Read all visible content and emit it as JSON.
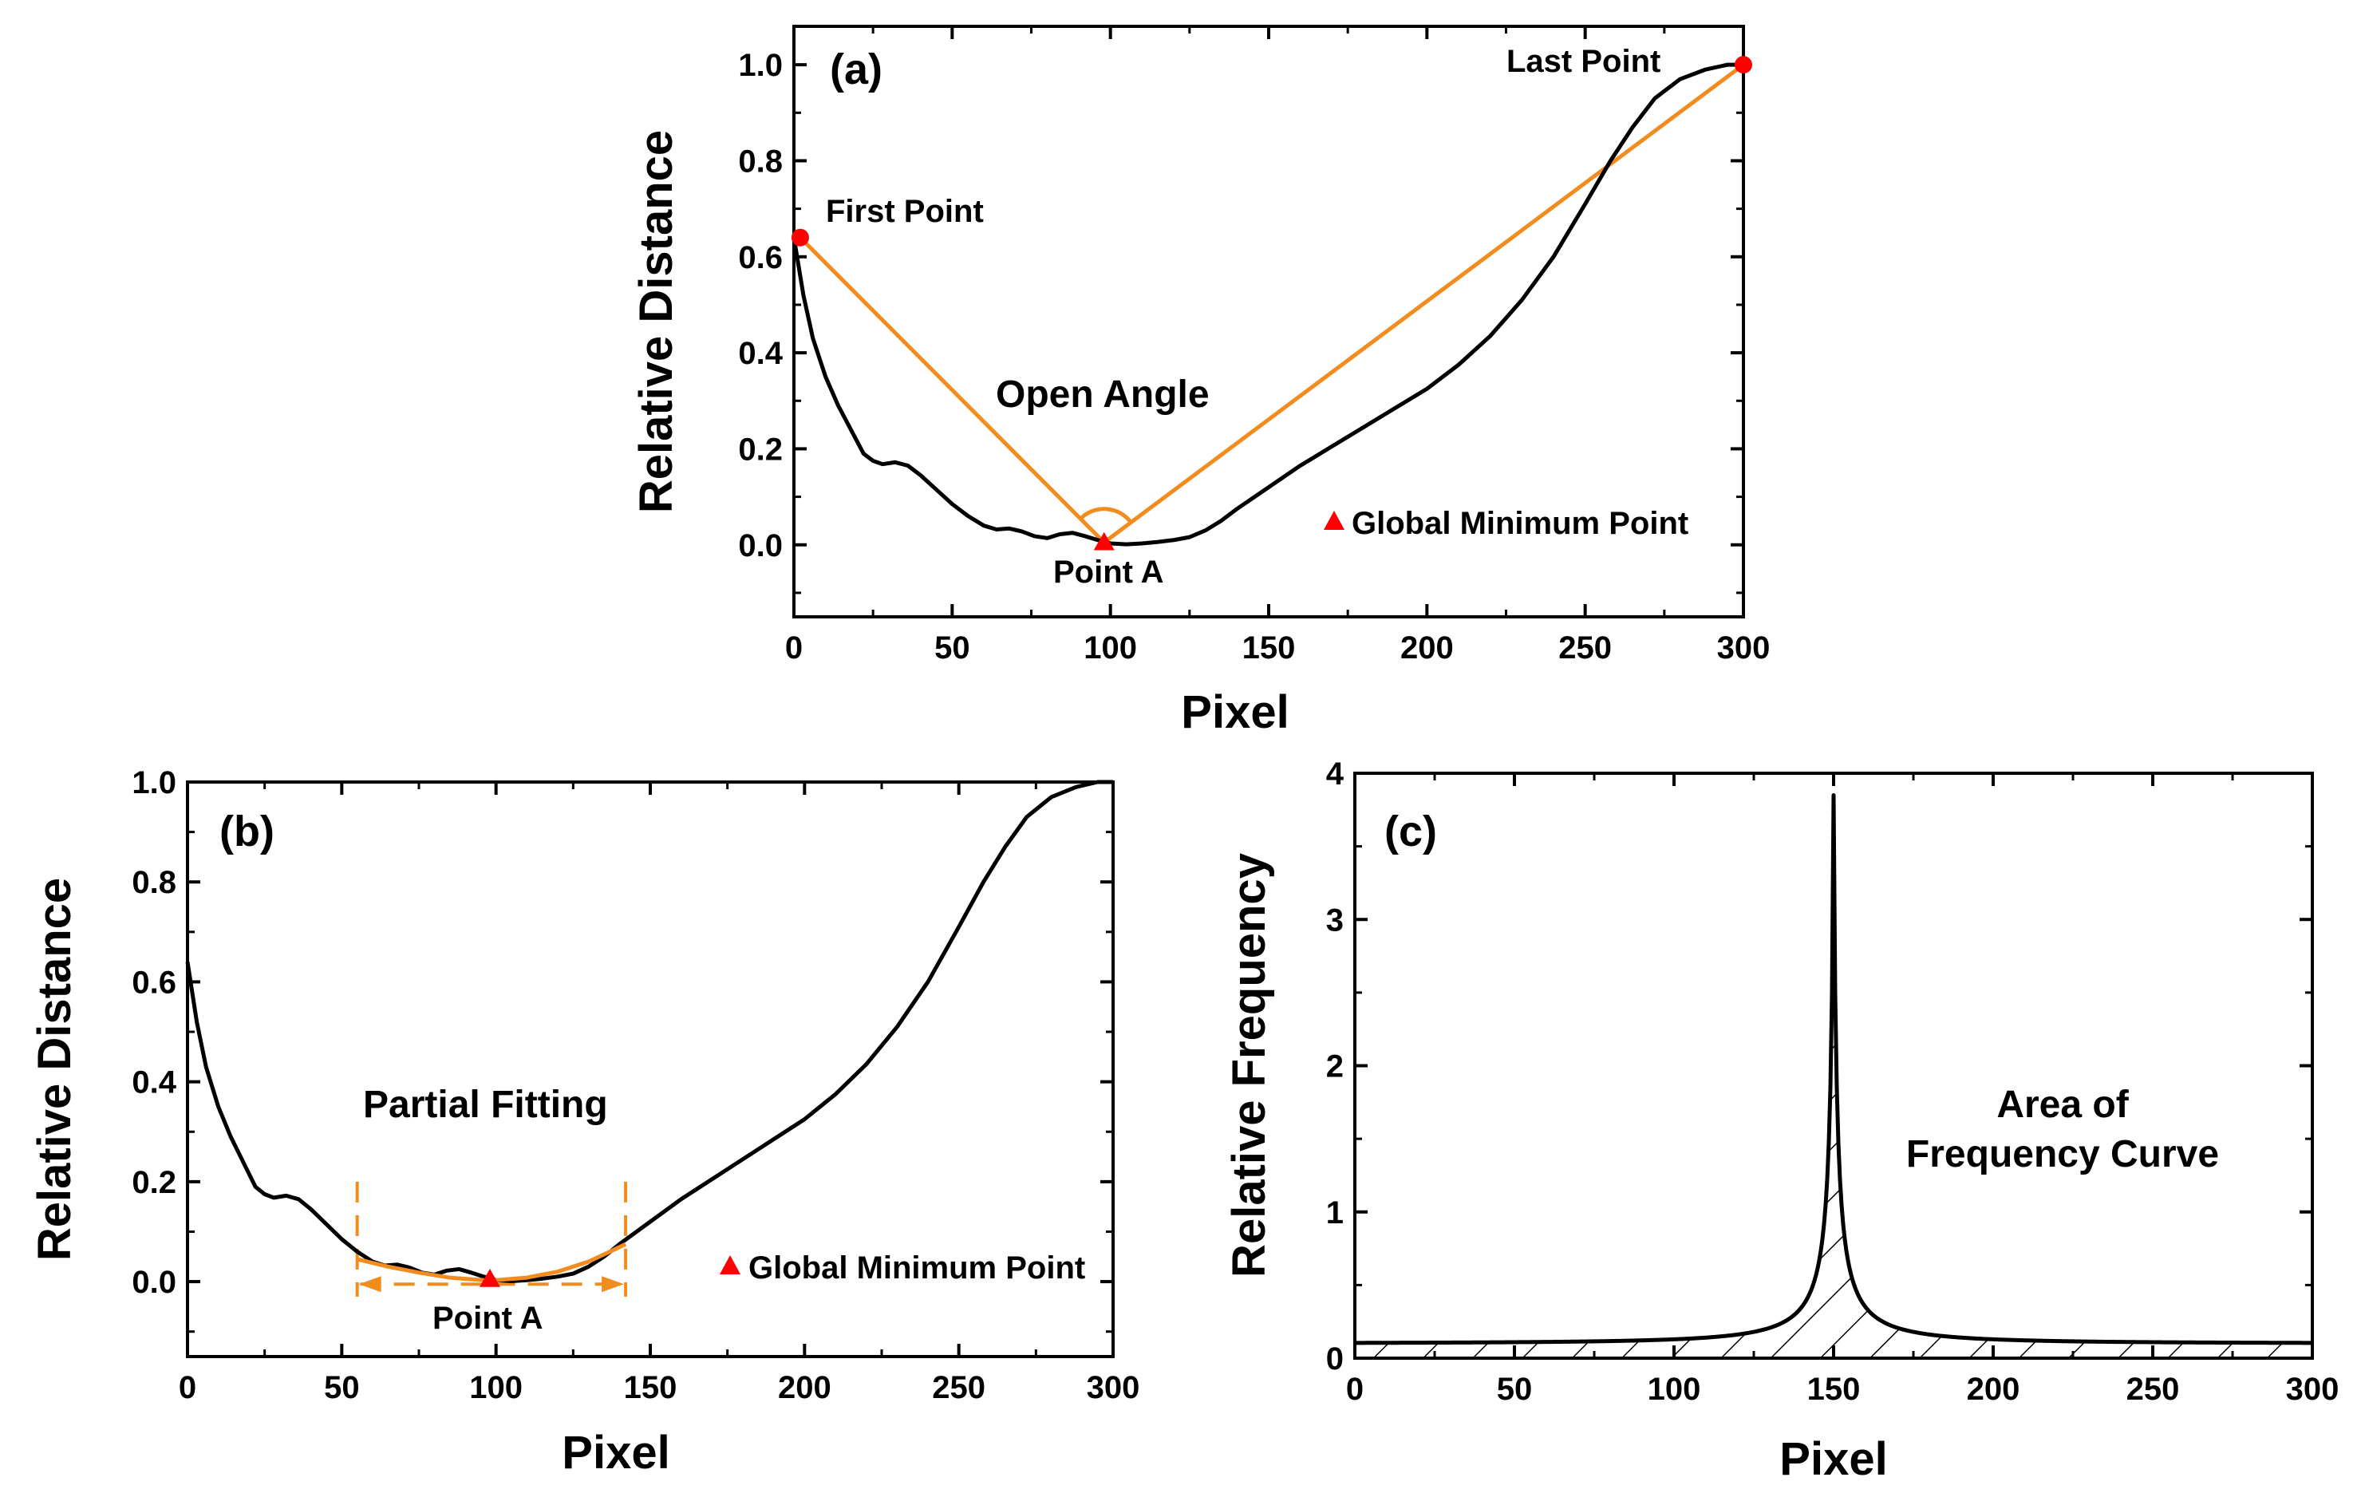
{
  "chart_data": [
    {
      "panel": "(a)",
      "type": "line",
      "xlabel": "Pixel",
      "ylabel": "Relative Distance",
      "xlim": [
        0,
        300
      ],
      "ylim": [
        -0.15,
        1.08
      ],
      "xticks": [
        0,
        50,
        100,
        150,
        200,
        250,
        300
      ],
      "yticks": [
        0.0,
        0.2,
        0.4,
        0.6,
        0.8,
        1.0
      ],
      "series": [
        {
          "name": "distance curve",
          "color": "#000000",
          "points": [
            [
              0,
              0.64
            ],
            [
              3,
              0.52
            ],
            [
              6,
              0.43
            ],
            [
              10,
              0.35
            ],
            [
              14,
              0.29
            ],
            [
              18,
              0.24
            ],
            [
              22,
              0.19
            ],
            [
              25,
              0.175
            ],
            [
              28,
              0.168
            ],
            [
              32,
              0.172
            ],
            [
              36,
              0.165
            ],
            [
              40,
              0.145
            ],
            [
              45,
              0.115
            ],
            [
              50,
              0.085
            ],
            [
              55,
              0.06
            ],
            [
              60,
              0.04
            ],
            [
              64,
              0.032
            ],
            [
              68,
              0.034
            ],
            [
              72,
              0.028
            ],
            [
              76,
              0.018
            ],
            [
              80,
              0.014
            ],
            [
              84,
              0.022
            ],
            [
              88,
              0.025
            ],
            [
              92,
              0.018
            ],
            [
              96,
              0.01
            ],
            [
              100,
              0.003
            ],
            [
              105,
              0.001
            ],
            [
              110,
              0.003
            ],
            [
              115,
              0.006
            ],
            [
              120,
              0.01
            ],
            [
              125,
              0.016
            ],
            [
              130,
              0.03
            ],
            [
              135,
              0.05
            ],
            [
              140,
              0.075
            ],
            [
              150,
              0.12
            ],
            [
              160,
              0.165
            ],
            [
              170,
              0.205
            ],
            [
              180,
              0.245
            ],
            [
              190,
              0.285
            ],
            [
              200,
              0.325
            ],
            [
              210,
              0.375
            ],
            [
              220,
              0.435
            ],
            [
              230,
              0.51
            ],
            [
              240,
              0.6
            ],
            [
              250,
              0.71
            ],
            [
              258,
              0.8
            ],
            [
              265,
              0.87
            ],
            [
              272,
              0.93
            ],
            [
              280,
              0.97
            ],
            [
              288,
              0.99
            ],
            [
              295,
              1.0
            ],
            [
              300,
              1.0
            ]
          ]
        },
        {
          "name": "open angle lines",
          "color": "#f28c1e",
          "points": [
            [
              2,
              0.64
            ],
            [
              98,
              0.005
            ],
            [
              300,
              1.0
            ]
          ]
        }
      ],
      "markers": [
        {
          "type": "circle",
          "color": "#ff0000",
          "x": 2,
          "y": 0.64
        },
        {
          "type": "circle",
          "color": "#ff0000",
          "x": 300,
          "y": 1.0
        },
        {
          "type": "triangle",
          "color": "#ff0000",
          "x": 98,
          "y": 0.005
        }
      ],
      "annotations": {
        "panel_label": "(a)",
        "first_point": "First Point",
        "last_point": "Last Point",
        "open_angle": "Open Angle",
        "point_a": "Point A",
        "legend": "Global Minimum Point"
      }
    },
    {
      "panel": "(b)",
      "type": "line",
      "xlabel": "Pixel",
      "ylabel": "Relative Distance",
      "xlim": [
        0,
        300
      ],
      "ylim": [
        -0.15,
        1.0
      ],
      "xticks": [
        0,
        50,
        100,
        150,
        200,
        250,
        300
      ],
      "yticks": [
        0.0,
        0.2,
        0.4,
        0.6,
        0.8,
        1.0
      ],
      "series": [
        {
          "name": "distance curve",
          "color": "#000000",
          "same_as_panel": "(a)"
        },
        {
          "name": "partial fitting",
          "color": "#f28c1e",
          "points": [
            [
              55,
              0.045
            ],
            [
              65,
              0.03
            ],
            [
              75,
              0.018
            ],
            [
              85,
              0.008
            ],
            [
              98,
              0.002
            ],
            [
              110,
              0.008
            ],
            [
              120,
              0.02
            ],
            [
              130,
              0.04
            ],
            [
              142,
              0.075
            ]
          ]
        }
      ],
      "fit_range": [
        55,
        142
      ],
      "markers": [
        {
          "type": "triangle",
          "color": "#ff0000",
          "x": 98,
          "y": 0.005
        }
      ],
      "annotations": {
        "panel_label": "(b)",
        "partial_fitting": "Partial Fitting",
        "point_a": "Point A",
        "legend": "Global Minimum Point"
      }
    },
    {
      "panel": "(c)",
      "type": "area",
      "xlabel": "Pixel",
      "ylabel": "Relative Frequency",
      "xlim": [
        0,
        300
      ],
      "ylim": [
        0,
        4
      ],
      "xticks": [
        0,
        50,
        100,
        150,
        200,
        250,
        300
      ],
      "yticks": [
        0,
        1,
        2,
        3,
        4
      ],
      "series": [
        {
          "name": "frequency curve",
          "color": "#000000",
          "peak_x": 150,
          "peak_y": 3.85,
          "baseline": 0.1
        }
      ],
      "fill": "hatched",
      "annotations": {
        "panel_label": "(c)",
        "area_line1": "Area of",
        "area_line2": "Frequency Curve"
      }
    }
  ]
}
